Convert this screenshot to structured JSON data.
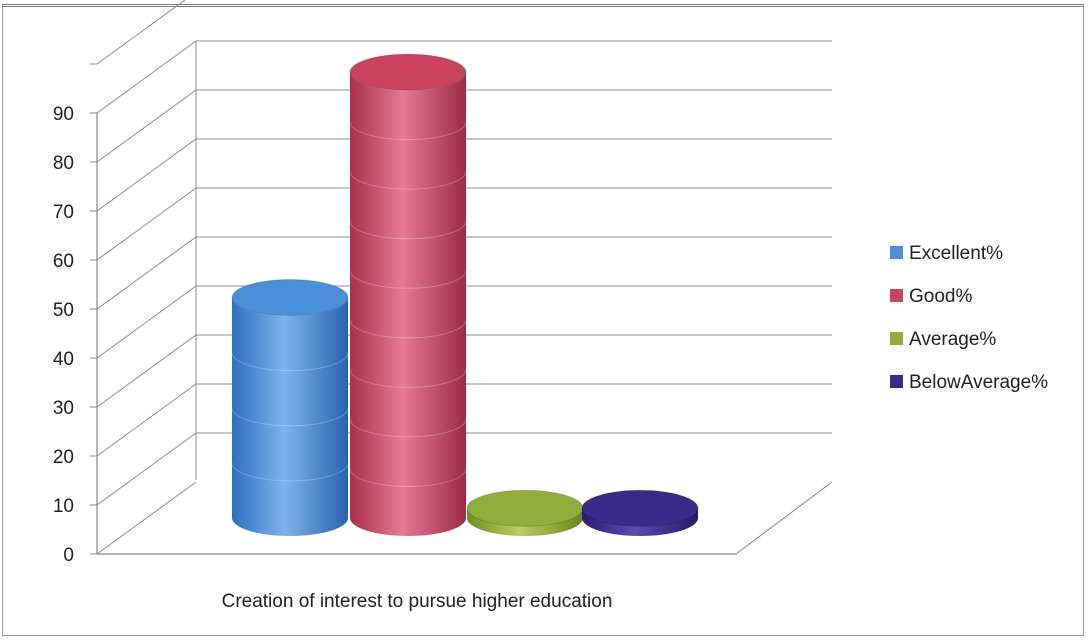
{
  "chart_data": {
    "type": "bar",
    "style": "3d-cylinder",
    "categories": [
      "Creation of interest to pursue higher education"
    ],
    "series": [
      {
        "name": "Excellent%",
        "values": [
          45
        ],
        "color": "#4a8fd8"
      },
      {
        "name": "Good%",
        "values": [
          91
        ],
        "color": "#c9435f"
      },
      {
        "name": "Average%",
        "values": [
          2
        ],
        "color": "#8fae3c"
      },
      {
        "name": "BelowAverage%",
        "values": [
          2
        ],
        "color": "#3a2a8a"
      }
    ],
    "y_ticks": [
      "0",
      "10",
      "20",
      "30",
      "40",
      "50",
      "60",
      "70",
      "80",
      "90"
    ],
    "ylim": [
      0,
      100
    ],
    "grid": true,
    "legend_position": "right"
  }
}
